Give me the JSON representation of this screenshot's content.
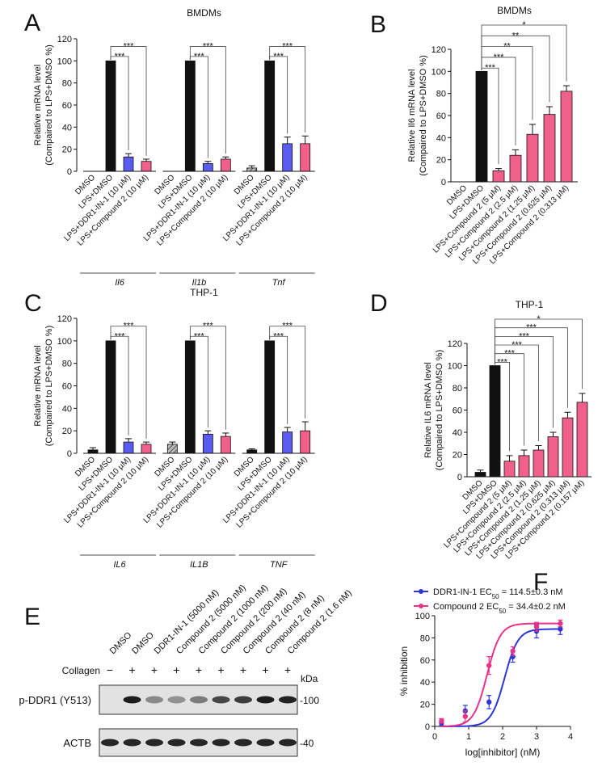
{
  "colors": {
    "black": "#111111",
    "blue": "#5a5cf0",
    "pink": "#f0608a",
    "hatch": "#555555",
    "line_blue": "#2e35d8",
    "line_pink": "#e8338a"
  },
  "chart_data": [
    {
      "panel": "A",
      "type": "bar",
      "title": "BMDMs",
      "ylabel": [
        "Relative mRNA level",
        "(Compaired to LPS+DMSO %)"
      ],
      "ylim": [
        0,
        120
      ],
      "yticks": [
        0,
        20,
        40,
        60,
        80,
        100,
        120
      ],
      "categories": [
        "DMSO",
        "LPS+DMSO",
        "LPS+DDR1-IN-1 (10 μM)",
        "LPS+Compound 2 (10 μM)"
      ],
      "groups": [
        {
          "name": "Il6",
          "values": [
            0,
            100,
            13,
            9
          ],
          "errors": [
            0,
            0,
            3,
            2
          ],
          "sig": [
            "***",
            "***"
          ]
        },
        {
          "name": "Il1b",
          "values": [
            0,
            100,
            7,
            11
          ],
          "errors": [
            0,
            0,
            2,
            2
          ],
          "sig": [
            "***",
            "***"
          ]
        },
        {
          "name": "Tnf",
          "values": [
            3,
            100,
            25,
            25
          ],
          "errors": [
            2,
            0,
            6,
            7
          ],
          "sig": [
            "***",
            "***"
          ]
        }
      ]
    },
    {
      "panel": "B",
      "type": "bar",
      "title": "BMDMs",
      "ylabel": [
        "Relative Il6 mRNA level",
        "(Compaired to LPS+DMSO %)"
      ],
      "ylim": [
        0,
        120
      ],
      "yticks": [
        0,
        20,
        40,
        60,
        80,
        100,
        120
      ],
      "categories": [
        "DMSO",
        "LPS+DMSO",
        "LPS+Compound 2 (5 μM)",
        "LPS+Compound 2 (2.5 μM)",
        "LPS+Compound 2 (1.25 μM)",
        "LPS+Compound 2 (0.625 μM)",
        "LPS+Compound 2 (0.313 μM)"
      ],
      "values": [
        0,
        100,
        10,
        24,
        43,
        61,
        82
      ],
      "errors": [
        0,
        0,
        2,
        5,
        9,
        7,
        5
      ],
      "sig": [
        "***",
        "***",
        "**",
        "**",
        "*"
      ]
    },
    {
      "panel": "C",
      "type": "bar",
      "title": "THP-1",
      "ylabel": [
        "Relative mRNA level",
        "(Compaired to LPS+DMSO %)"
      ],
      "ylim": [
        0,
        120
      ],
      "yticks": [
        0,
        20,
        40,
        60,
        80,
        100,
        120
      ],
      "categories": [
        "DMSO",
        "LPS+DMSO",
        "LPS+DDR1-IN-1 (10 μM)",
        "LPS+Compound 2 (10 μM)"
      ],
      "groups": [
        {
          "name": "IL6",
          "values": [
            3,
            100,
            10,
            8
          ],
          "errors": [
            2,
            0,
            3,
            2
          ],
          "sig": [
            "***",
            "***"
          ]
        },
        {
          "name": "IL1B",
          "values": [
            8,
            100,
            17,
            15
          ],
          "errors": [
            2,
            0,
            3,
            3
          ],
          "sig": [
            "***",
            "***"
          ]
        },
        {
          "name": "TNF",
          "values": [
            3,
            100,
            19,
            20
          ],
          "errors": [
            1,
            0,
            4,
            8
          ],
          "sig": [
            "***",
            "***"
          ]
        }
      ]
    },
    {
      "panel": "D",
      "type": "bar",
      "title": "THP-1",
      "ylabel": [
        "Relative IL6 mRNA level",
        "(Compaired to LPS+DMSO %)"
      ],
      "ylim": [
        0,
        120
      ],
      "yticks": [
        0,
        20,
        40,
        60,
        80,
        100,
        120
      ],
      "categories": [
        "DMSO",
        "LPS+DMSO",
        "LPS+Compound 2 (5 μM)",
        "LPS+Compound 2 (2.5 μM)",
        "LPS+Compound 2 (1.25 μM)",
        "LPS+Compound 2 (0.625 μM)",
        "LPS+Compound 2 (0.313 μM)",
        "LPS+Compound 2 (0.157 μM)"
      ],
      "values": [
        4,
        100,
        14,
        19,
        24,
        36,
        53,
        67
      ],
      "errors": [
        2,
        0,
        5,
        5,
        4,
        4,
        5,
        8
      ],
      "sig": [
        "***",
        "***",
        "***",
        "***",
        "***",
        "*"
      ]
    },
    {
      "panel": "F",
      "type": "scatter",
      "xlabel": "log[inhibitor] (nM)",
      "ylabel": "% inhibition",
      "xlim": [
        0,
        4
      ],
      "ylim": [
        0,
        100
      ],
      "xticks": [
        0,
        1,
        2,
        3,
        4
      ],
      "yticks": [
        0,
        20,
        40,
        60,
        80,
        100
      ],
      "series": [
        {
          "name": "DDR1-IN-1",
          "ec50_text": "EC50 = 114.5±0.3 nM",
          "x": [
            0.2,
            0.9,
            1.6,
            2.3,
            3.0,
            3.7
          ],
          "y": [
            3,
            14,
            22,
            63,
            86,
            88
          ],
          "err": [
            2,
            5,
            6,
            5,
            6,
            5
          ],
          "fit_log_ec50": 2.06,
          "fit_top": 88
        },
        {
          "name": "Compound 2",
          "ec50_text": "EC50 = 34.4±0.2 nM",
          "x": [
            0.2,
            0.9,
            1.6,
            2.3,
            3.0,
            3.7
          ],
          "y": [
            5,
            9,
            55,
            68,
            90,
            93
          ],
          "err": [
            2,
            5,
            8,
            4,
            4,
            3
          ],
          "fit_log_ec50": 1.54,
          "fit_top": 93
        }
      ]
    }
  ],
  "panels": {
    "a": "A",
    "b": "B",
    "c": "C",
    "d": "D",
    "e": "E",
    "f": "F"
  },
  "blot": {
    "lanes": [
      "DMSO",
      "DMSO",
      "DDR1-IN-1 (5000 nM)",
      "Compound 2 (5000 nM)",
      "Compound 2 (1000 nM)",
      "Compound 2 (200 nM)",
      "Compound 2 (40 nM)",
      "Compound 2 (8 nM)",
      "Compound 2 (1.6 nM)"
    ],
    "collagen_label": "Collagen",
    "collagen": [
      "−",
      "+",
      "+",
      "+",
      "+",
      "+",
      "+",
      "+",
      "+"
    ],
    "kda_label": "kDa",
    "rows": [
      {
        "label": "p-DDR1 (Y513)",
        "marker": "-100",
        "intensity": [
          0,
          0.95,
          0.35,
          0.3,
          0.42,
          0.72,
          0.78,
          0.95,
          0.92
        ]
      },
      {
        "label": "ACTB",
        "marker": "-40",
        "intensity": [
          0.9,
          0.9,
          0.9,
          0.9,
          0.9,
          0.9,
          0.9,
          0.9,
          0.9
        ]
      }
    ]
  }
}
